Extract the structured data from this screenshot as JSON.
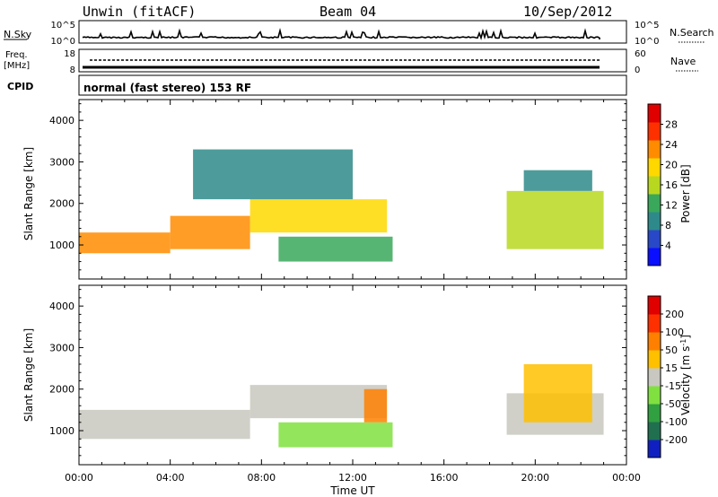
{
  "header": {
    "station": "Unwin (fitACF)",
    "beam": "Beam 04",
    "date": "10/Sep/2012"
  },
  "top_panels": {
    "nsky_label": "N.Sky",
    "nsky_ticks": [
      "10^5",
      "10^0"
    ],
    "nsearch_label": "N.Search",
    "nsearch_ticks": [
      "10^5",
      "10^0"
    ],
    "freq_label": "Freq.",
    "freq_unit": "[MHz]",
    "freq_ticks": [
      "18",
      "8"
    ],
    "nave_label": "Nave",
    "nave_ticks": [
      "60",
      "0"
    ],
    "cpid_label": "CPID",
    "cpid_text": "normal (fast stereo) 153 RF"
  },
  "chart_data": [
    {
      "type": "heatmap",
      "name": "power",
      "xlabel": "",
      "ylabel": "Slant Range [km]",
      "xlim": [
        "00:00",
        "24:00"
      ],
      "ylim": [
        180,
        4500
      ],
      "y_ticks": [
        1000,
        2000,
        3000,
        4000
      ],
      "colorbar": {
        "label": "Power [dB]",
        "ticks": [
          4,
          8,
          12,
          16,
          20,
          24,
          28
        ],
        "range": [
          0,
          32
        ],
        "colors": [
          "#0a10ff",
          "#2848c8",
          "#2e8a8a",
          "#3aa85a",
          "#b8d820",
          "#ffd800",
          "#ff8c00",
          "#ff3000",
          "#e00000"
        ]
      },
      "data_regions": [
        {
          "time_start": "00:00",
          "time_end": "04:00",
          "range_low": 800,
          "range_high": 1300,
          "power_db": 22
        },
        {
          "time_start": "04:00",
          "time_end": "07:30",
          "range_low": 900,
          "range_high": 1700,
          "power_db": 24
        },
        {
          "time_start": "07:30",
          "time_end": "13:30",
          "range_low": 1300,
          "range_high": 2100,
          "power_db": 18
        },
        {
          "time_start": "08:45",
          "time_end": "13:45",
          "range_low": 600,
          "range_high": 1200,
          "power_db": 14
        },
        {
          "time_start": "05:00",
          "time_end": "12:00",
          "range_low": 2100,
          "range_high": 3300,
          "power_db": 8
        },
        {
          "time_start": "18:45",
          "time_end": "23:00",
          "range_low": 900,
          "range_high": 2300,
          "power_db": 16
        },
        {
          "time_start": "19:30",
          "time_end": "22:30",
          "range_low": 2300,
          "range_high": 2800,
          "power_db": 8
        }
      ]
    },
    {
      "type": "heatmap",
      "name": "velocity",
      "xlabel": "Time UT",
      "ylabel": "Slant Range [km]",
      "xlim": [
        "00:00",
        "24:00"
      ],
      "ylim": [
        180,
        4500
      ],
      "x_ticks": [
        "00:00",
        "04:00",
        "08:00",
        "12:00",
        "16:00",
        "20:00",
        "00:00"
      ],
      "y_ticks": [
        1000,
        2000,
        3000,
        4000
      ],
      "colorbar": {
        "label": "Velocity [m s",
        "label_sup": "-1",
        "label_end": "]",
        "ticks": [
          "200",
          "100",
          "50",
          "15",
          "-15",
          "-50",
          "-100",
          "-200"
        ],
        "colors": [
          "#1020c0",
          "#207050",
          "#30a040",
          "#80e040",
          "#c8c8c0",
          "#ffc000",
          "#ff8000",
          "#ff3000",
          "#e00000"
        ]
      },
      "data_regions": [
        {
          "time_start": "00:00",
          "time_end": "07:30",
          "range_low": 800,
          "range_high": 1500,
          "velocity_ms": 0
        },
        {
          "time_start": "07:30",
          "time_end": "13:30",
          "range_low": 1300,
          "range_high": 2100,
          "velocity_ms": 0
        },
        {
          "time_start": "08:45",
          "time_end": "13:45",
          "range_low": 600,
          "range_high": 1200,
          "velocity_ms": -50
        },
        {
          "time_start": "12:30",
          "time_end": "13:30",
          "range_low": 1200,
          "range_high": 2000,
          "velocity_ms": 60
        },
        {
          "time_start": "18:45",
          "time_end": "23:00",
          "range_low": 900,
          "range_high": 1900,
          "velocity_ms": 0
        },
        {
          "time_start": "19:30",
          "time_end": "22:30",
          "range_low": 1200,
          "range_high": 2600,
          "velocity_ms": 30
        }
      ]
    }
  ]
}
